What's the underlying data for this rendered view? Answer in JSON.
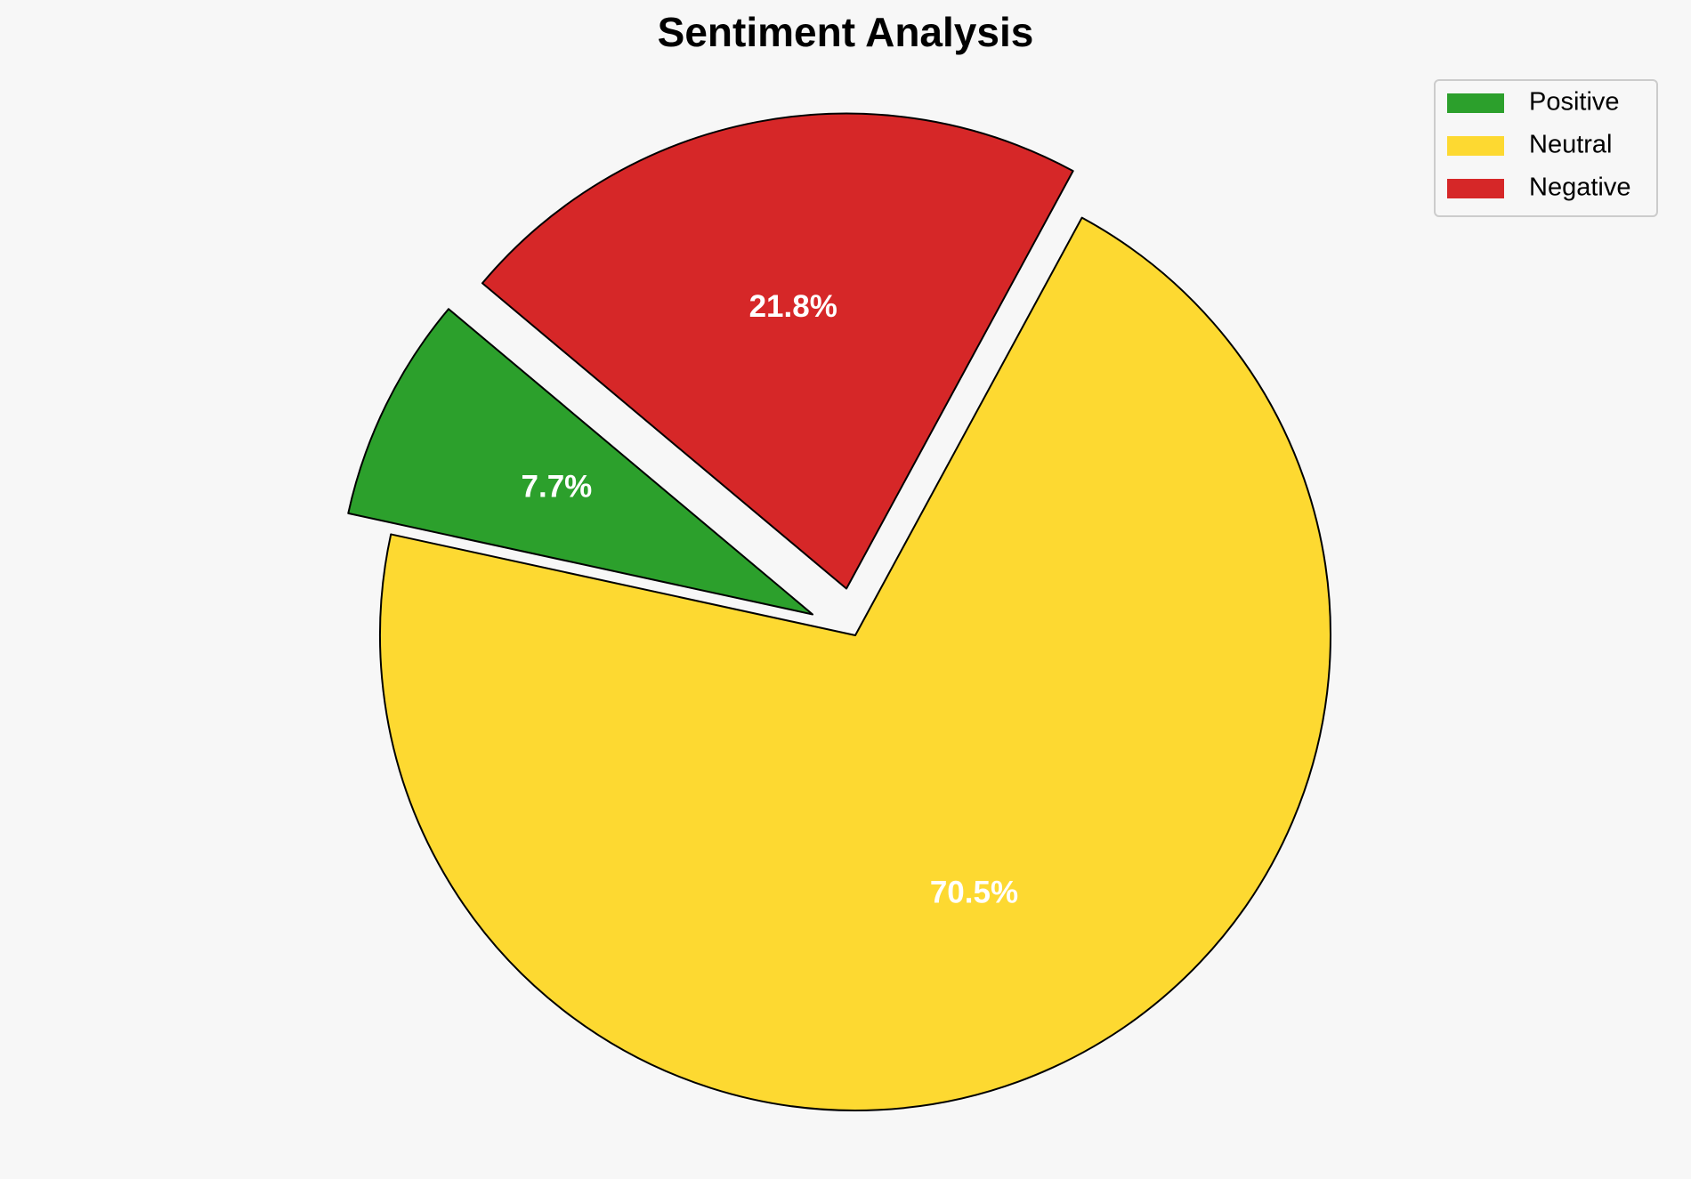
{
  "chart_data": {
    "type": "pie",
    "title": "Sentiment Analysis",
    "categories": [
      "Positive",
      "Neutral",
      "Negative"
    ],
    "values": [
      7.7,
      70.5,
      21.8
    ],
    "value_labels": [
      "7.7%",
      "70.5%",
      "21.8%"
    ],
    "colors": [
      "#2ca02c",
      "#fdd931",
      "#d62728"
    ],
    "explode": [
      0.1,
      0,
      0.1
    ],
    "startangle": 140,
    "legend": "upper right"
  }
}
